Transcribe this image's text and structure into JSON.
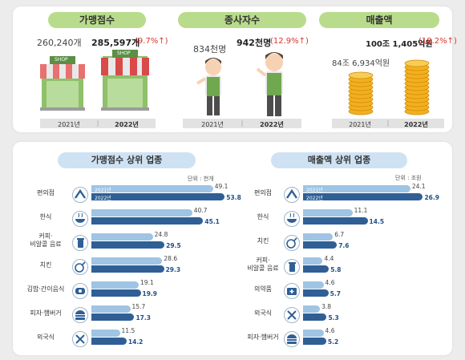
{
  "top": {
    "franchises": {
      "title": "가맹점수",
      "value_2021": "260,240개",
      "value_2022": "285,597개",
      "change": "(9.7%↑)",
      "shop_sign": "SHOP",
      "year_2021": "2021년",
      "year_2022": "2022년"
    },
    "employees": {
      "title": "종사자수",
      "value_2021": "834천명",
      "value_2022": "942천명",
      "change": "(12.9%↑)",
      "year_2021": "2021년",
      "year_2022": "2022년"
    },
    "sales": {
      "title": "매출액",
      "value_2021": "84조 6,934억원",
      "value_2022": "100조 1,405억원",
      "change": "(18.2%↑)",
      "year_2021": "2021년",
      "year_2022": "2022년"
    }
  },
  "chart_data": [
    {
      "type": "bar",
      "orientation": "horizontal",
      "title": "가맹점수 상위 업종",
      "unit": "단위 : 천개",
      "categories": [
        "편의점",
        "한식",
        "커피·비알콜 음료",
        "치킨",
        "김밥·간이음식",
        "피자·햄버거",
        "외국식"
      ],
      "category_icons": [
        "convenience-store-icon",
        "korean-food-icon",
        "coffee-cup-icon",
        "chicken-icon",
        "gimbap-icon",
        "burger-icon",
        "fork-knife-icon"
      ],
      "series": [
        {
          "name": "2021년",
          "color": "#9fc4e4",
          "values": [
            49.1,
            40.7,
            24.8,
            28.6,
            19.1,
            15.7,
            11.5
          ]
        },
        {
          "name": "2022년",
          "color": "#2f5f95",
          "values": [
            53.8,
            45.1,
            29.5,
            29.3,
            19.9,
            17.3,
            14.2
          ]
        }
      ],
      "xlim": [
        0,
        55
      ]
    },
    {
      "type": "bar",
      "orientation": "horizontal",
      "title": "매출액 상위 업종",
      "unit": "단위 : 조원",
      "categories": [
        "편의점",
        "한식",
        "치킨",
        "커피·비알콜 음료",
        "의약품",
        "외국식",
        "피자·햄버거"
      ],
      "category_icons": [
        "convenience-store-icon",
        "korean-food-icon",
        "chicken-icon",
        "coffee-cup-icon",
        "medicine-icon",
        "fork-knife-icon",
        "burger-icon"
      ],
      "series": [
        {
          "name": "2021년",
          "color": "#9fc4e4",
          "values": [
            24.1,
            11.1,
            6.7,
            4.4,
            4.6,
            3.8,
            4.6
          ]
        },
        {
          "name": "2022년",
          "color": "#2f5f95",
          "values": [
            26.9,
            14.5,
            7.6,
            5.8,
            5.7,
            5.3,
            5.2
          ]
        }
      ],
      "xlim": [
        0,
        27
      ]
    }
  ],
  "colors": {
    "green_pill": "#b9dc8c",
    "blue_pill": "#cfe2f3",
    "bar_2021": "#9fc4e4",
    "bar_2022": "#2f5f95",
    "increase_red": "#d9342b"
  }
}
